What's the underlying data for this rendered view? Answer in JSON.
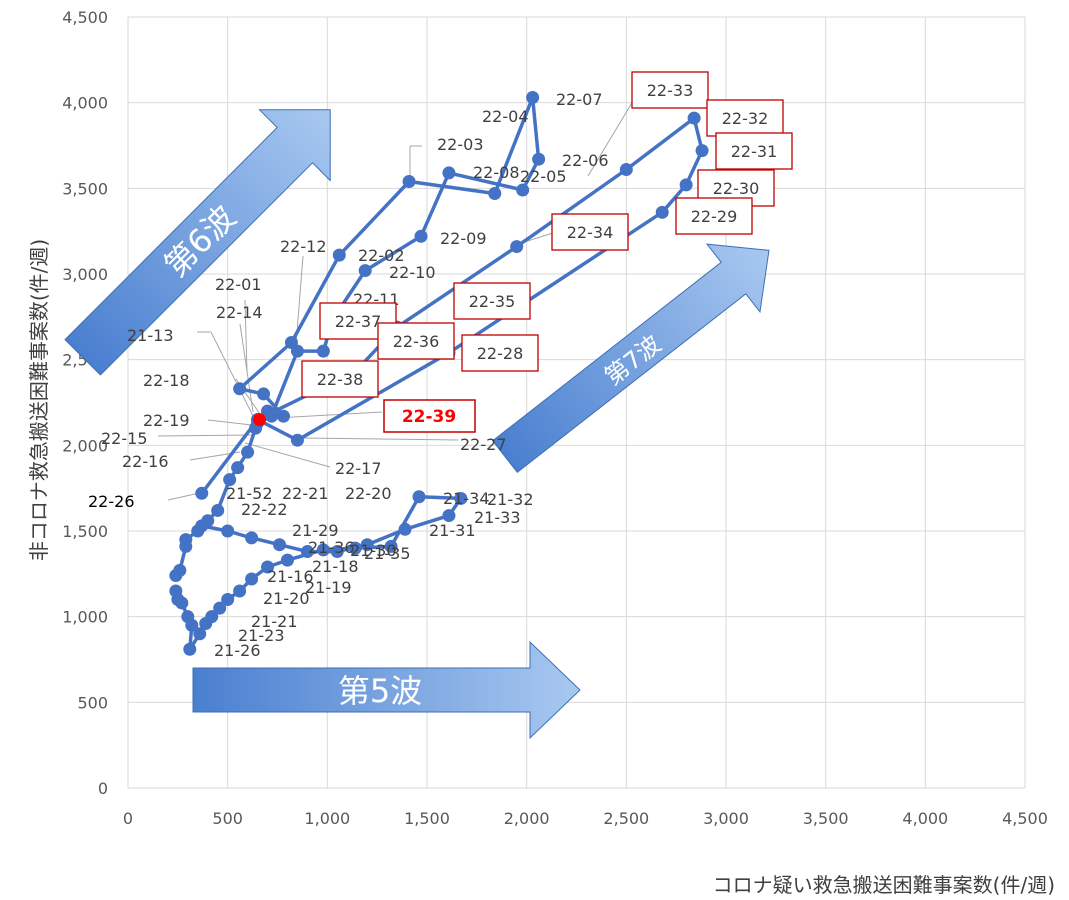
{
  "chart_data": {
    "type": "scatter",
    "title": "",
    "xlabel": "コロナ疑い救急搬送困難事案数(件/週)",
    "ylabel": "非コロナ救急搬送困難事案数(件/週)",
    "xlim": [
      0,
      4500
    ],
    "ylim": [
      0,
      4500
    ],
    "x_ticks": [
      0,
      500,
      1000,
      1500,
      2000,
      2500,
      3000,
      3500,
      4000,
      4500
    ],
    "y_ticks": [
      0,
      500,
      1000,
      1500,
      2000,
      2500,
      3000,
      3500,
      4000,
      4500
    ],
    "x_tick_labels": [
      "0",
      "500",
      "1,000",
      "1,500",
      "2,000",
      "2,500",
      "3,000",
      "3,500",
      "4,000",
      "4,500"
    ],
    "y_tick_labels": [
      "0",
      "500",
      "1,000",
      "1,500",
      "2,000",
      "2,500",
      "3,000",
      "3,500",
      "4,000",
      "4,500"
    ],
    "grid": true,
    "series_color": "#4472c4",
    "highlight_color": "#ff0000",
    "waves": [
      {
        "label": "第5波"
      },
      {
        "label": "第6波"
      },
      {
        "label": "第7波"
      }
    ],
    "segments": [
      [
        {
          "x": 240,
          "y": 1150
        },
        {
          "x": 250,
          "y": 1100
        },
        {
          "x": 270,
          "y": 1080
        },
        {
          "x": 300,
          "y": 1000
        },
        {
          "x": 320,
          "y": 950
        },
        {
          "x": 310,
          "y": 810
        },
        {
          "x": 360,
          "y": 900
        },
        {
          "x": 390,
          "y": 960
        },
        {
          "x": 420,
          "y": 1000
        },
        {
          "x": 460,
          "y": 1050
        },
        {
          "x": 500,
          "y": 1100
        },
        {
          "x": 560,
          "y": 1150
        },
        {
          "x": 620,
          "y": 1220
        },
        {
          "x": 700,
          "y": 1290
        },
        {
          "x": 800,
          "y": 1330
        },
        {
          "x": 980,
          "y": 1390
        },
        {
          "x": 1140,
          "y": 1400
        },
        {
          "x": 1320,
          "y": 1410
        },
        {
          "x": 1460,
          "y": 1700
        },
        {
          "x": 1670,
          "y": 1690
        },
        {
          "x": 1610,
          "y": 1590
        },
        {
          "x": 1390,
          "y": 1510
        },
        {
          "x": 1200,
          "y": 1420
        },
        {
          "x": 1050,
          "y": 1380
        },
        {
          "x": 900,
          "y": 1380
        },
        {
          "x": 760,
          "y": 1420
        },
        {
          "x": 620,
          "y": 1460
        },
        {
          "x": 500,
          "y": 1500
        },
        {
          "x": 370,
          "y": 1530
        }
      ],
      [
        {
          "x": 240,
          "y": 1240
        },
        {
          "x": 260,
          "y": 1270
        },
        {
          "x": 290,
          "y": 1410
        },
        {
          "x": 290,
          "y": 1450
        },
        {
          "x": 350,
          "y": 1500
        },
        {
          "x": 400,
          "y": 1560
        },
        {
          "x": 450,
          "y": 1620
        },
        {
          "x": 510,
          "y": 1800
        },
        {
          "x": 550,
          "y": 1870
        },
        {
          "x": 600,
          "y": 1960
        },
        {
          "x": 640,
          "y": 2100
        },
        {
          "x": 700,
          "y": 2200
        },
        {
          "x": 780,
          "y": 2170
        },
        {
          "x": 680,
          "y": 2300
        },
        {
          "x": 560,
          "y": 2330
        },
        {
          "x": 820,
          "y": 2600
        },
        {
          "x": 1060,
          "y": 3110
        },
        {
          "x": 1410,
          "y": 3540
        },
        {
          "x": 1840,
          "y": 3470
        },
        {
          "x": 2030,
          "y": 4030
        },
        {
          "x": 2060,
          "y": 3670
        },
        {
          "x": 1980,
          "y": 3490
        },
        {
          "x": 1610,
          "y": 3590
        },
        {
          "x": 1470,
          "y": 3220
        },
        {
          "x": 1190,
          "y": 3020
        },
        {
          "x": 1030,
          "y": 2740
        },
        {
          "x": 980,
          "y": 2550
        },
        {
          "x": 850,
          "y": 2550
        },
        {
          "x": 720,
          "y": 2170
        },
        {
          "x": 650,
          "y": 2130
        }
      ],
      [
        {
          "x": 370,
          "y": 1720
        },
        {
          "x": 650,
          "y": 2150
        },
        {
          "x": 850,
          "y": 2030
        },
        {
          "x": 1610,
          "y": 2540
        },
        {
          "x": 2680,
          "y": 3360
        },
        {
          "x": 2800,
          "y": 3520
        },
        {
          "x": 2880,
          "y": 3720
        },
        {
          "x": 2840,
          "y": 3910
        },
        {
          "x": 2500,
          "y": 3610
        },
        {
          "x": 1950,
          "y": 3160
        },
        {
          "x": 1350,
          "y": 2690
        },
        {
          "x": 1140,
          "y": 2430
        },
        {
          "x": 650,
          "y": 2150
        }
      ]
    ],
    "highlight_point": {
      "x": 660,
      "y": 2150,
      "label": "22-39"
    },
    "point_labels": [
      {
        "text": "22-07"
      },
      {
        "text": "22-04"
      },
      {
        "text": "22-03"
      },
      {
        "text": "22-08"
      },
      {
        "text": "22-05"
      },
      {
        "text": "22-06"
      },
      {
        "text": "22-09"
      },
      {
        "text": "22-12"
      },
      {
        "text": "22-02"
      },
      {
        "text": "22-10"
      },
      {
        "text": "22-01"
      },
      {
        "text": "22-11"
      },
      {
        "text": "22-14"
      },
      {
        "text": "21-13"
      },
      {
        "text": "22-18"
      },
      {
        "text": "22-19"
      },
      {
        "text": "22-15"
      },
      {
        "text": "22-16"
      },
      {
        "text": "22-17"
      },
      {
        "text": "22-27"
      },
      {
        "text": "22-26"
      },
      {
        "text": "21-52"
      },
      {
        "text": "22-21"
      },
      {
        "text": "22-20"
      },
      {
        "text": "22-22"
      },
      {
        "text": "21-29"
      },
      {
        "text": "21-30"
      },
      {
        "text": "21-35"
      },
      {
        "text": "21-36"
      },
      {
        "text": "21-18"
      },
      {
        "text": "21-16"
      },
      {
        "text": "21-19"
      },
      {
        "text": "21-20"
      },
      {
        "text": "21-21"
      },
      {
        "text": "21-23"
      },
      {
        "text": "21-26"
      },
      {
        "text": "21-34"
      },
      {
        "text": "21-32"
      },
      {
        "text": "21-33"
      },
      {
        "text": "21-31"
      }
    ],
    "boxed_labels": [
      {
        "text": "22-33"
      },
      {
        "text": "22-32"
      },
      {
        "text": "22-31"
      },
      {
        "text": "22-30"
      },
      {
        "text": "22-29"
      },
      {
        "text": "22-34"
      },
      {
        "text": "22-35"
      },
      {
        "text": "22-37"
      },
      {
        "text": "22-36"
      },
      {
        "text": "22-28"
      },
      {
        "text": "22-38"
      }
    ]
  }
}
